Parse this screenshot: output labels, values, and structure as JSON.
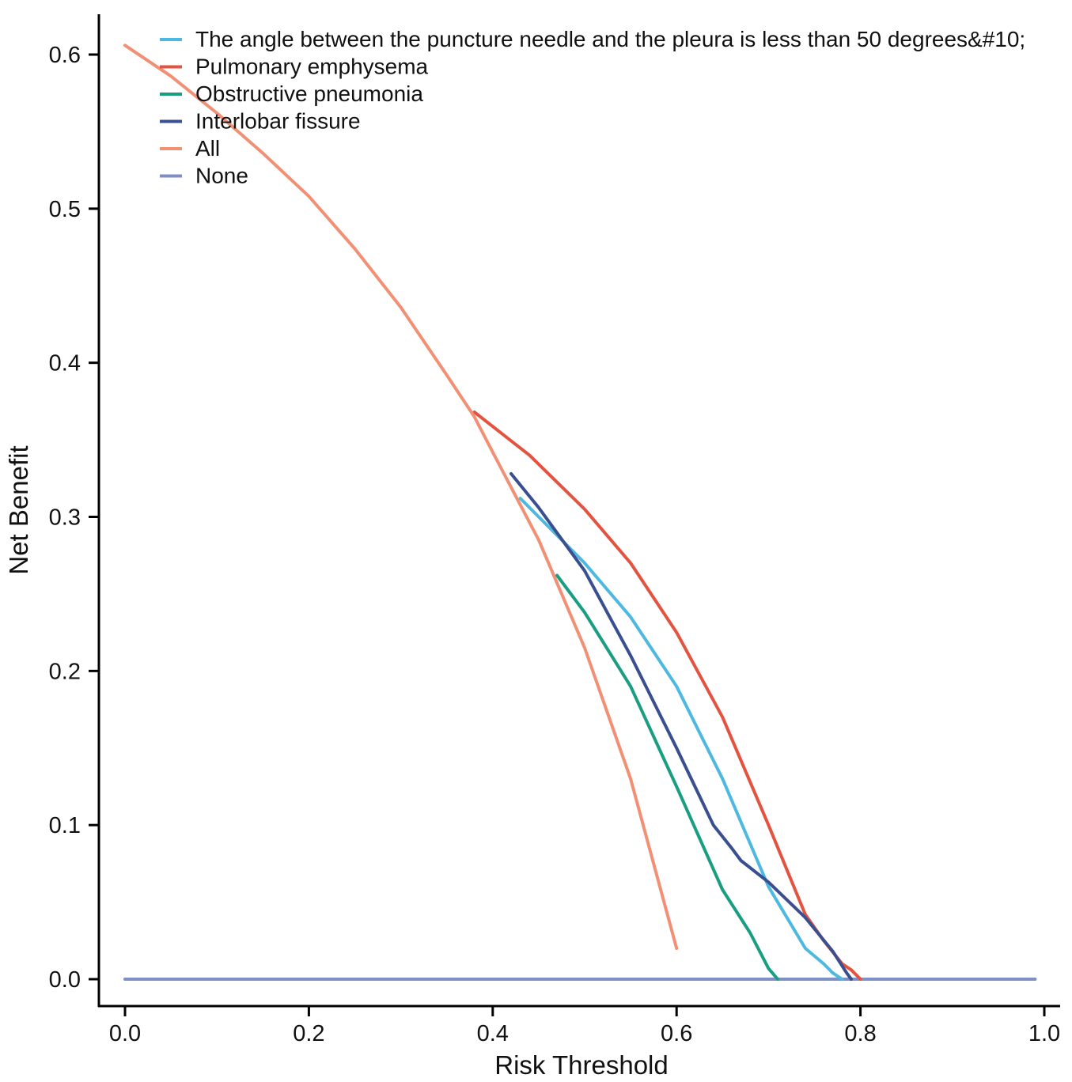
{
  "chart_data": {
    "type": "line",
    "title": "",
    "xlabel": "Risk Threshold",
    "ylabel": "Net Benefit",
    "xlim": [
      0,
      1
    ],
    "ylim": [
      -0.018,
      0.626
    ],
    "x_ticks": [
      "0.0",
      "0.2",
      "0.4",
      "0.6",
      "0.8",
      "1.0"
    ],
    "y_ticks": [
      "0.0",
      "0.1",
      "0.2",
      "0.3",
      "0.4",
      "0.5",
      "0.6"
    ],
    "grid": false,
    "legend_position": "top-left",
    "series": [
      {
        "name": "None",
        "color": "#7f8fc7",
        "x": [
          0.0,
          0.99
        ],
        "y": [
          0.0,
          0.0
        ]
      },
      {
        "name": "Pulmonary emphysema",
        "color": "#e35340",
        "x": [
          0.38,
          0.44,
          0.5,
          0.55,
          0.6,
          0.65,
          0.7,
          0.74,
          0.76,
          0.78,
          0.79,
          0.8
        ],
        "y": [
          0.368,
          0.34,
          0.305,
          0.27,
          0.225,
          0.17,
          0.1,
          0.042,
          0.025,
          0.01,
          0.006,
          0.0
        ]
      },
      {
        "name": "The angle between the puncture needle and the pleura is less than 50 degrees&#10;",
        "color": "#4db8e0",
        "x": [
          0.43,
          0.45,
          0.5,
          0.55,
          0.6,
          0.65,
          0.7,
          0.74,
          0.76,
          0.77,
          0.78
        ],
        "y": [
          0.312,
          0.3,
          0.27,
          0.235,
          0.19,
          0.13,
          0.06,
          0.02,
          0.01,
          0.004,
          0.0
        ]
      },
      {
        "name": "Interlobar fissure",
        "color": "#3a4f8f",
        "x": [
          0.42,
          0.45,
          0.5,
          0.55,
          0.6,
          0.64,
          0.66,
          0.67,
          0.7,
          0.74,
          0.77,
          0.785,
          0.79
        ],
        "y": [
          0.328,
          0.306,
          0.265,
          0.21,
          0.15,
          0.1,
          0.085,
          0.077,
          0.063,
          0.04,
          0.018,
          0.004,
          0.0
        ]
      },
      {
        "name": "Obstructive pneumonia",
        "color": "#1a9e82",
        "x": [
          0.47,
          0.5,
          0.55,
          0.6,
          0.65,
          0.68,
          0.7,
          0.71
        ],
        "y": [
          0.262,
          0.238,
          0.19,
          0.125,
          0.058,
          0.03,
          0.007,
          0.0
        ]
      },
      {
        "name": "All",
        "color": "#f29076",
        "x": [
          0.0,
          0.05,
          0.1,
          0.15,
          0.2,
          0.25,
          0.3,
          0.35,
          0.38,
          0.4,
          0.45,
          0.5,
          0.55,
          0.6
        ],
        "y": [
          0.606,
          0.586,
          0.562,
          0.536,
          0.508,
          0.474,
          0.436,
          0.392,
          0.365,
          0.342,
          0.285,
          0.215,
          0.13,
          0.02
        ]
      }
    ],
    "legend": [
      {
        "name": "The angle between the puncture needle and the pleura is less than 50 degrees&#10;",
        "color": "#4db8e0"
      },
      {
        "name": "Pulmonary emphysema",
        "color": "#e35340"
      },
      {
        "name": "Obstructive pneumonia",
        "color": "#1a9e82"
      },
      {
        "name": "Interlobar fissure",
        "color": "#3a4f8f"
      },
      {
        "name": "All",
        "color": "#f29076"
      },
      {
        "name": "None",
        "color": "#7f8fc7"
      }
    ]
  }
}
